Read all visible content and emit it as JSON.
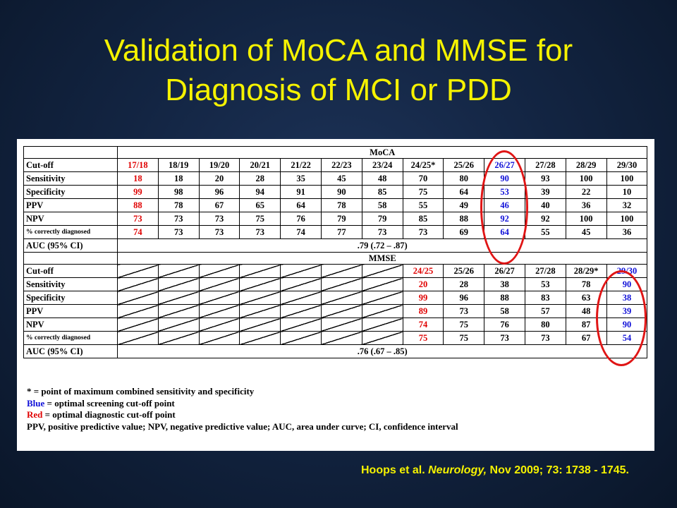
{
  "title": {
    "line1": "Validation of MoCA and MMSE for",
    "line2": "Diagnosis of MCI or PDD"
  },
  "moca": {
    "header": "MoCA",
    "rows": [
      {
        "label": "Cut-off",
        "cells": [
          "17/18",
          "18/19",
          "19/20",
          "20/21",
          "21/22",
          "22/23",
          "23/24",
          "24/25*",
          "25/26",
          "26/27",
          "27/28",
          "28/29",
          "29/30"
        ]
      },
      {
        "label": "Sensitivity",
        "cells": [
          "18",
          "18",
          "20",
          "28",
          "35",
          "45",
          "48",
          "70",
          "80",
          "90",
          "93",
          "100",
          "100"
        ]
      },
      {
        "label": "Specificity",
        "cells": [
          "99",
          "98",
          "96",
          "94",
          "91",
          "90",
          "85",
          "75",
          "64",
          "53",
          "39",
          "22",
          "10"
        ]
      },
      {
        "label": "PPV",
        "cells": [
          "88",
          "78",
          "67",
          "65",
          "64",
          "78",
          "58",
          "55",
          "49",
          "46",
          "40",
          "36",
          "32"
        ]
      },
      {
        "label": "NPV",
        "cells": [
          "73",
          "73",
          "73",
          "75",
          "76",
          "79",
          "79",
          "85",
          "88",
          "92",
          "92",
          "100",
          "100"
        ]
      },
      {
        "label": "% correctly diagnosed",
        "cells": [
          "74",
          "73",
          "73",
          "73",
          "74",
          "77",
          "73",
          "73",
          "69",
          "64",
          "55",
          "45",
          "36"
        ]
      }
    ],
    "auc_label": "AUC (95% CI)",
    "auc_value": ".79 (.72 – .87)"
  },
  "mmse": {
    "header": "MMSE",
    "rows": [
      {
        "label": "Cut-off",
        "cells": [
          "24/25",
          "25/26",
          "26/27",
          "27/28",
          "28/29*",
          "29/30"
        ]
      },
      {
        "label": "Sensitivity",
        "cells": [
          "20",
          "28",
          "38",
          "53",
          "78",
          "90"
        ]
      },
      {
        "label": "Specificity",
        "cells": [
          "99",
          "96",
          "88",
          "83",
          "63",
          "38"
        ]
      },
      {
        "label": "PPV",
        "cells": [
          "89",
          "73",
          "58",
          "57",
          "48",
          "39"
        ]
      },
      {
        "label": "NPV",
        "cells": [
          "74",
          "75",
          "76",
          "80",
          "87",
          "90"
        ]
      },
      {
        "label": "% correctly diagnosed",
        "cells": [
          "75",
          "75",
          "73",
          "73",
          "67",
          "54"
        ]
      }
    ],
    "auc_label": "AUC (95% CI)",
    "auc_value": ".76 (.67 – .85)"
  },
  "notes": {
    "line1": "* = point of maximum combined sensitivity and specificity",
    "line2_key": "Blue",
    "line2_rest": " = optimal screening cut-off point",
    "line3_key": "Red",
    "line3_rest": " = optimal diagnostic cut-off point",
    "line4": "PPV, positive predictive value; NPV, negative predictive value; AUC, area under curve; CI, confidence interval"
  },
  "citation": {
    "authors": "Hoops et al. ",
    "journal": "Neurology,",
    "rest": " Nov 2009; 73: 1738 - 1745."
  },
  "colors": {
    "title": "#f5f200",
    "red_highlight": "#e00000",
    "blue_highlight": "#1010d8",
    "circle": "#e01515"
  }
}
